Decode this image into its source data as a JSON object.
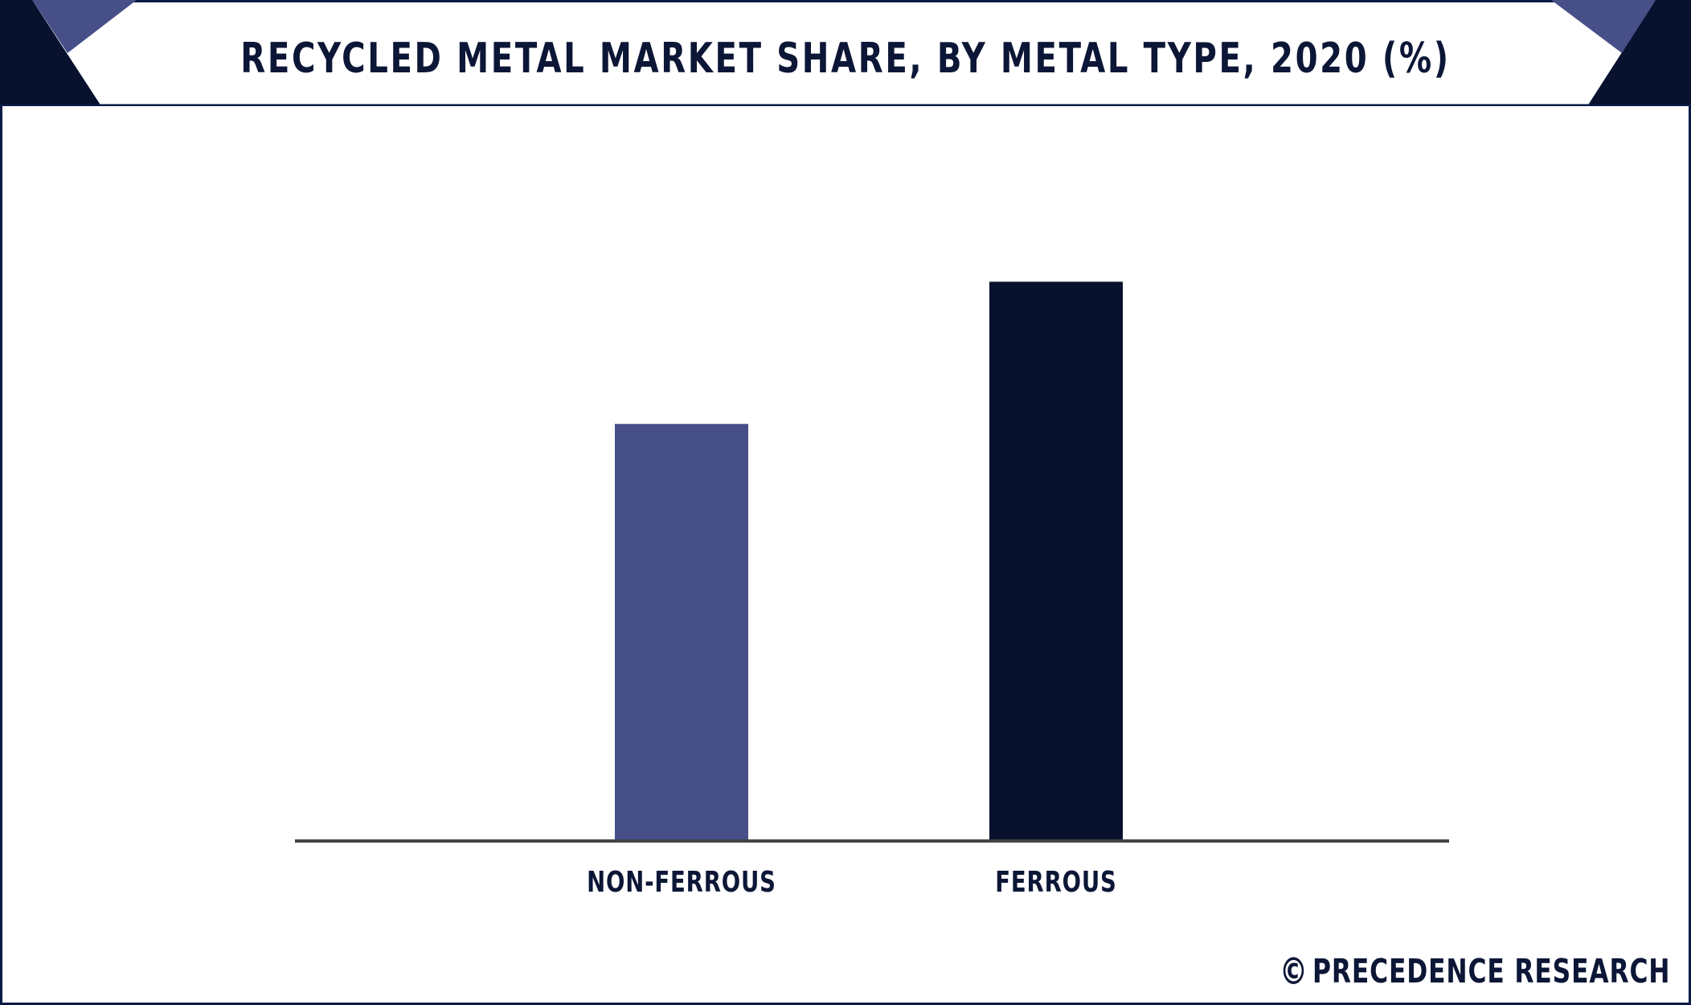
{
  "header": {
    "title": "RECYCLED METAL MARKET SHARE, BY METAL TYPE, 2020 (%)"
  },
  "brand": {
    "symbol": "©",
    "name": "PRECEDENCE RESEARCH"
  },
  "colors": {
    "frame": "#0a1a45",
    "accent_navy": "#08122f",
    "accent_purple": "#464f87",
    "axis": "#444444"
  },
  "chart_data": {
    "type": "bar",
    "title": "RECYCLED METAL MARKET SHARE, BY METAL TYPE, 2020 (%)",
    "categories": [
      "NON-FERROUS",
      "FERROUS"
    ],
    "values": [
      44,
      59
    ],
    "bar_colors": [
      "#464f87",
      "#08122f"
    ],
    "ylim": [
      0,
      76
    ],
    "grid": false,
    "legend": "none",
    "xlabel": "",
    "ylabel": ""
  }
}
